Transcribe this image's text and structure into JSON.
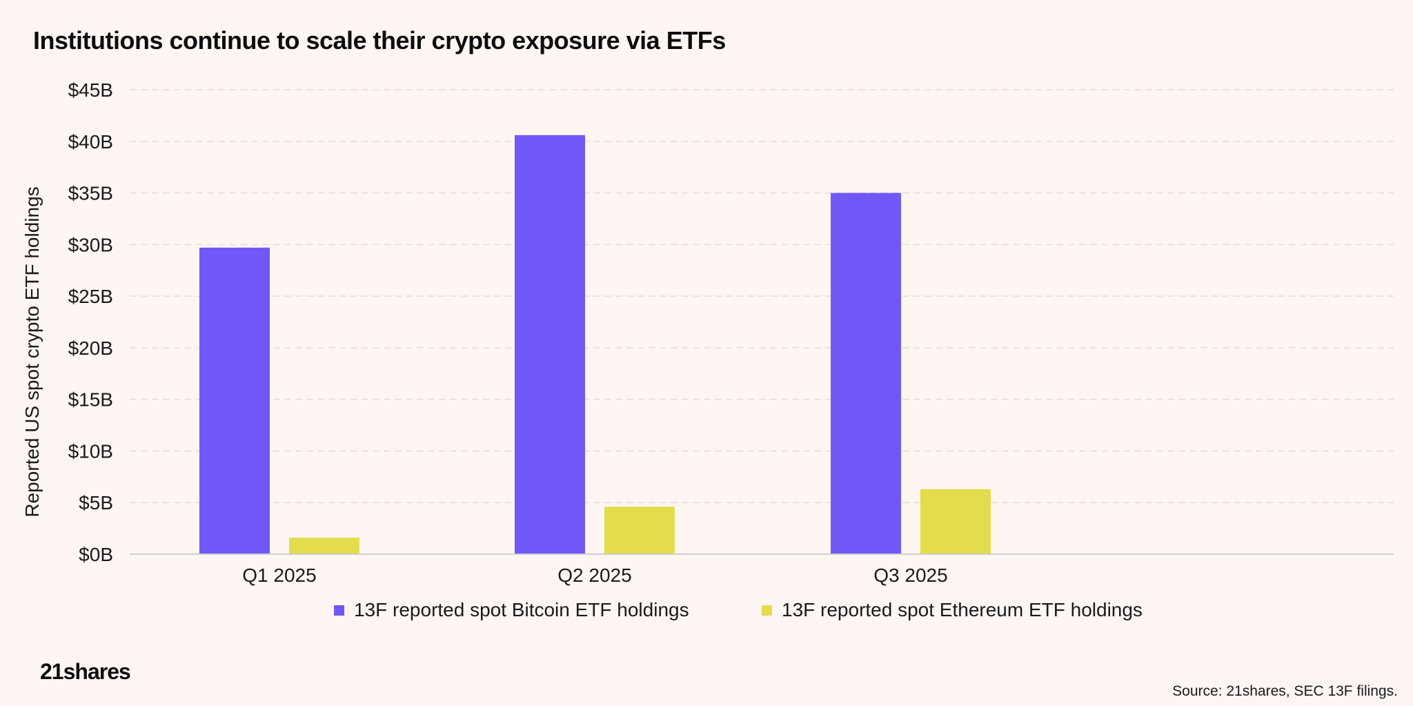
{
  "title": "Institutions continue to scale their crypto exposure via ETFs",
  "chart_data": {
    "type": "bar",
    "title": "Institutions continue to scale their crypto exposure via ETFs",
    "categories": [
      "Q1 2025",
      "Q2 2025",
      "Q3 2025"
    ],
    "series": [
      {
        "name": "13F reported spot Bitcoin ETF holdings",
        "color": "#7057f7",
        "values": [
          29.7,
          40.6,
          35.0
        ]
      },
      {
        "name": "13F reported spot Ethereum ETF holdings",
        "color": "#e3dd4c",
        "values": [
          1.6,
          4.6,
          6.3
        ]
      }
    ],
    "ylabel": "Reported US spot crypto ETF holdings",
    "xlabel": "",
    "ylim": [
      0,
      45
    ],
    "y_ticks": [
      0,
      5,
      10,
      15,
      20,
      25,
      30,
      35,
      40,
      45
    ],
    "y_tick_labels": [
      "$0B",
      "$5B",
      "$10B",
      "$15B",
      "$20B",
      "$25B",
      "$30B",
      "$35B",
      "$40B",
      "$45B"
    ],
    "grid": true,
    "legend_position": "bottom"
  },
  "brand": "21shares",
  "source": "Source: 21shares, SEC 13F filings."
}
